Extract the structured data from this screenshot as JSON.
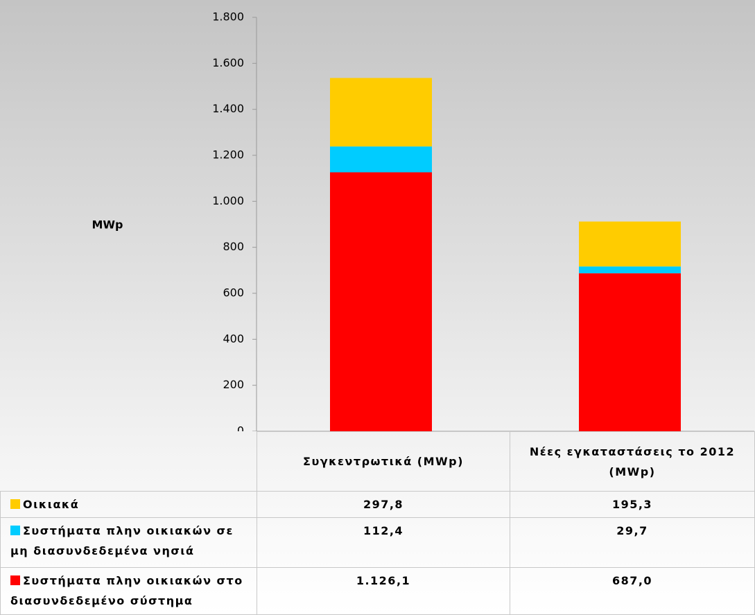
{
  "chart_data": {
    "type": "stacked_bar",
    "y_label": "MWp",
    "categories": [
      "Συγκεντρωτικά (MWp)",
      "Νέες εγκαταστάσεις το 2012 (MWp)"
    ],
    "series": [
      {
        "name": "Οικιακά",
        "color": "#ffcc00",
        "values": [
          297.8,
          195.3
        ],
        "value_labels": [
          "297,8",
          "195,3"
        ]
      },
      {
        "name": "Συστήματα πλην οικιακών σε μη διασυνδεδεμένα νησιά",
        "color": "#00ccff",
        "values": [
          112.4,
          29.7
        ],
        "value_labels": [
          "112,4",
          "29,7"
        ]
      },
      {
        "name": "Συστήματα πλην οικιακών στο διασυνδεδεμένο σύστημα",
        "color": "#ff0000",
        "values": [
          1126.1,
          687.0
        ],
        "value_labels": [
          "1.126,1",
          "687,0"
        ]
      }
    ],
    "ylim": [
      0,
      1800
    ],
    "yticks": [
      0,
      200,
      400,
      600,
      800,
      {
        "value": 1000,
        "label": "1.000"
      },
      {
        "value": 1200,
        "label": "1.200"
      },
      {
        "value": 1400,
        "label": "1.400"
      },
      {
        "value": 1600,
        "label": "1.600"
      },
      {
        "value": 1800,
        "label": "1.800"
      }
    ]
  }
}
